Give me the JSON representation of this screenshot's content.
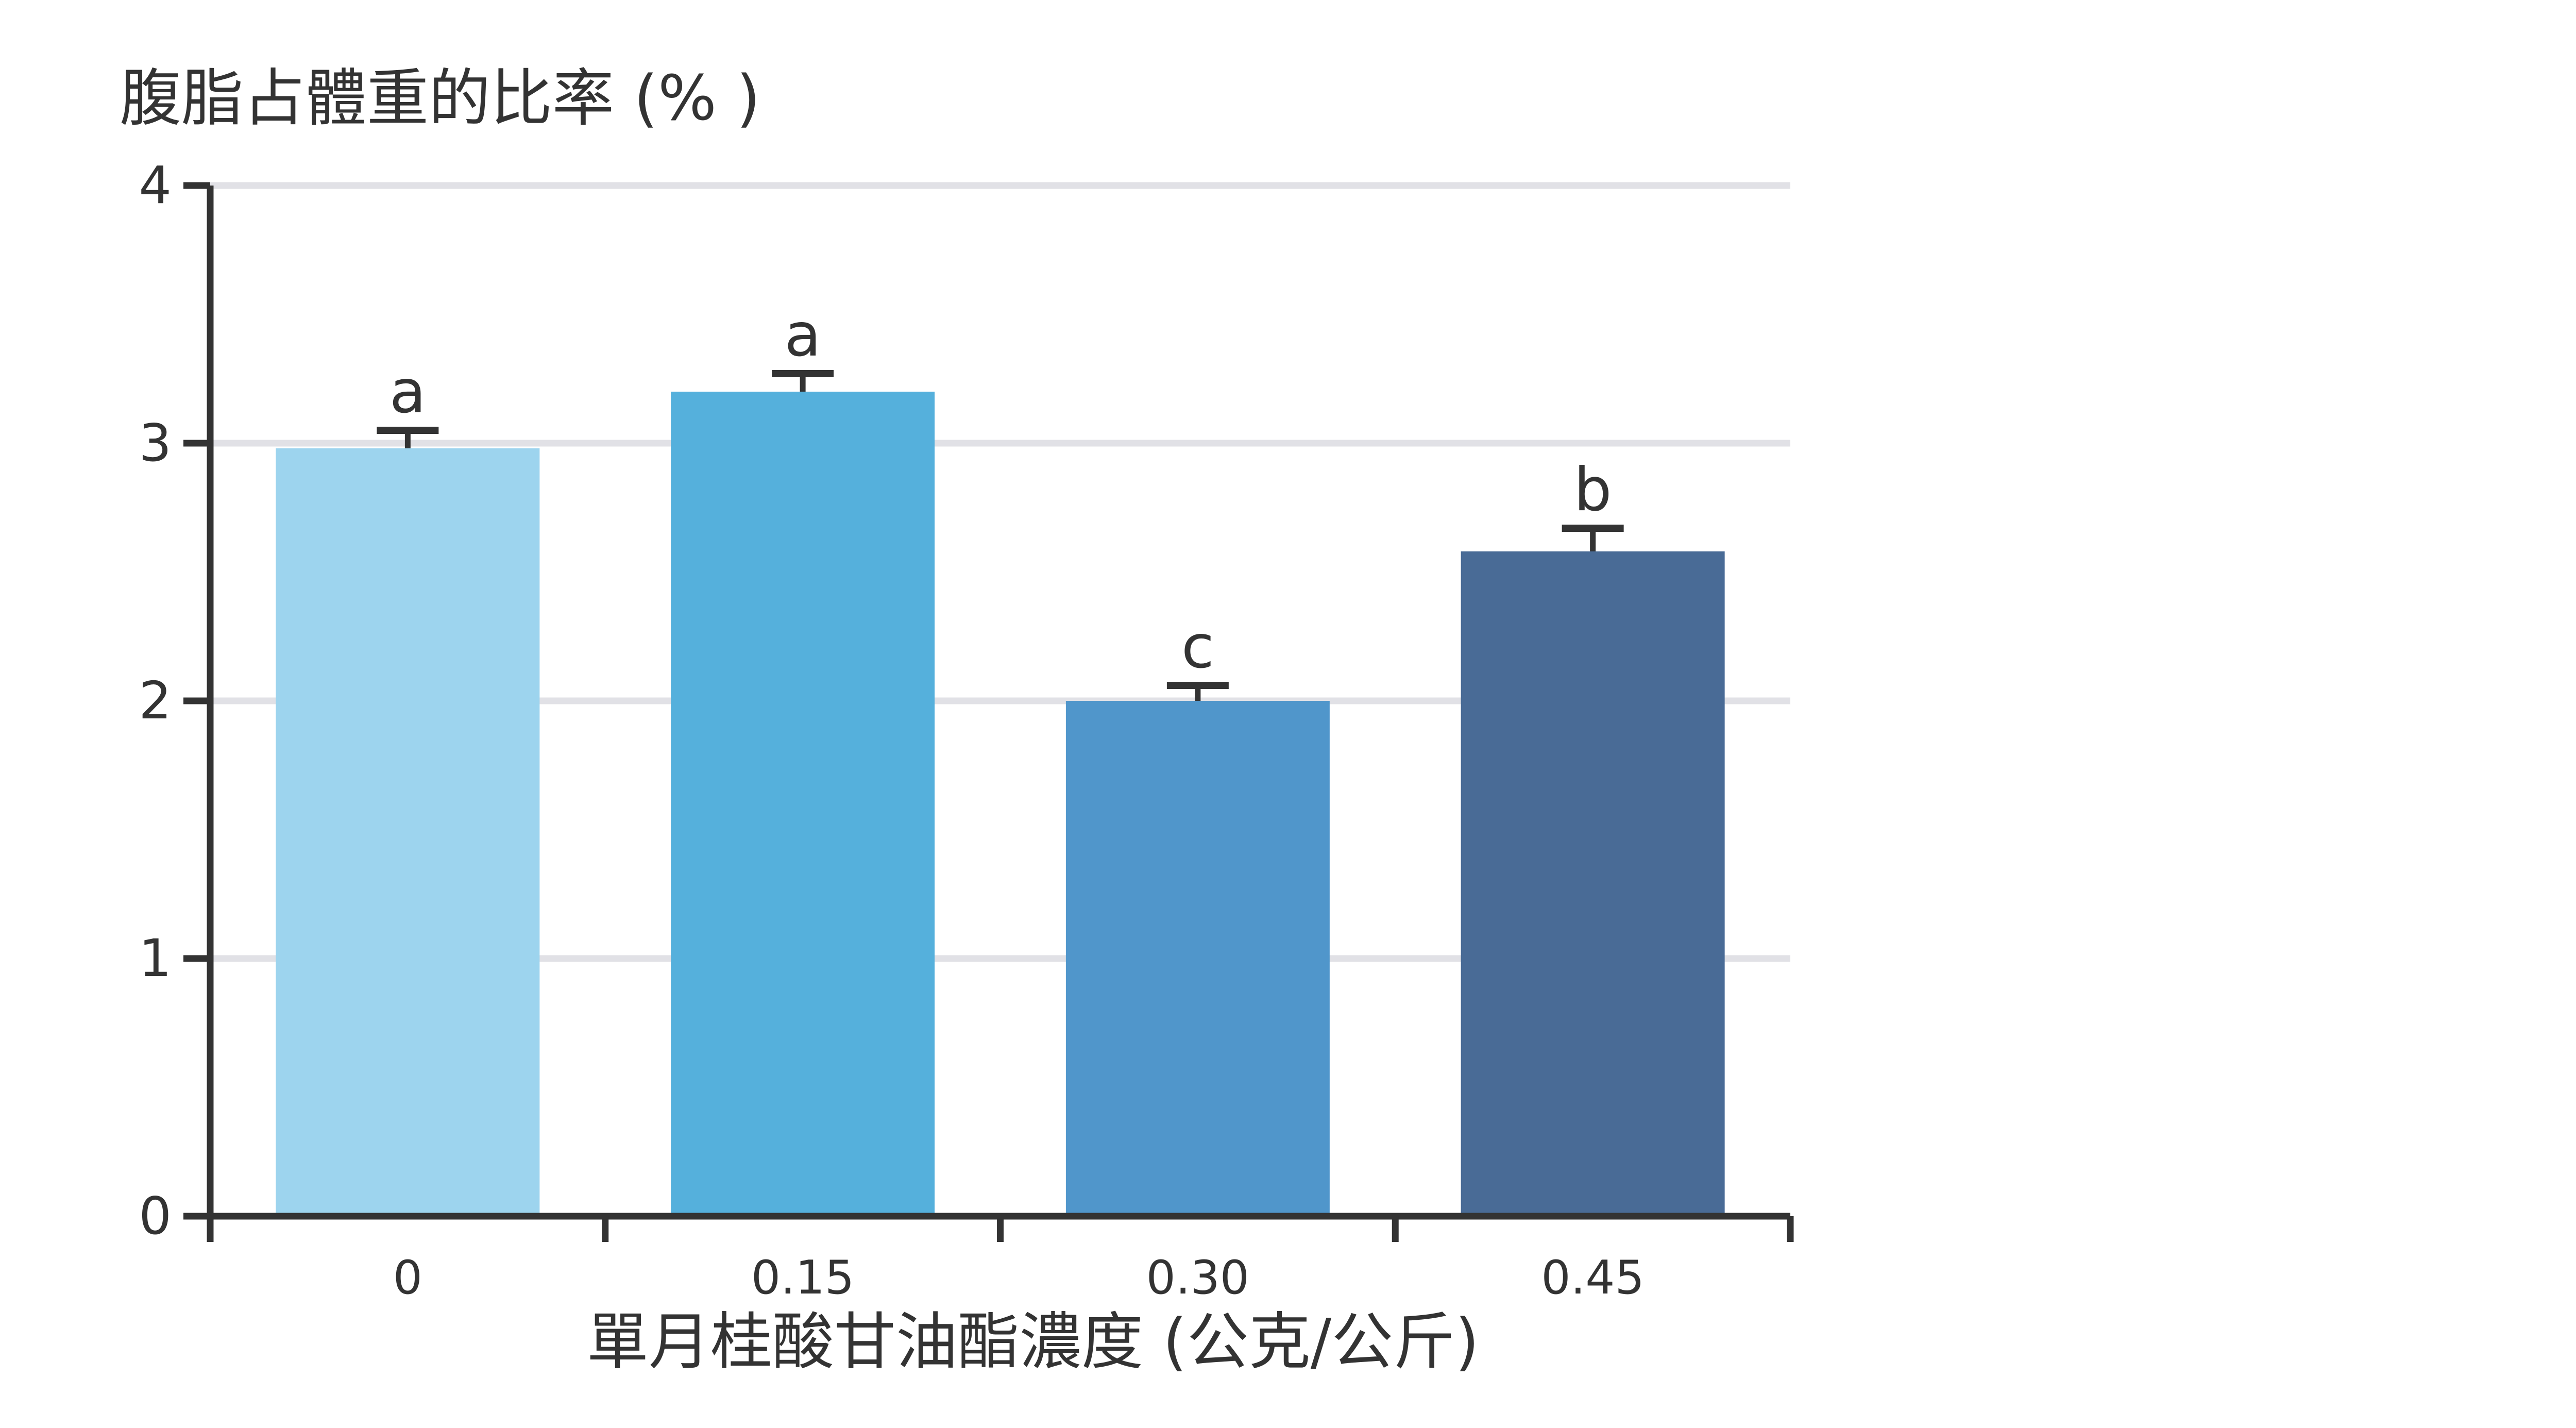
{
  "chart_data": {
    "type": "bar",
    "title": "",
    "ylabel": "腹脂占體重的比率 (% )",
    "xlabel": "單月桂酸甘油酯濃度 (公克/公斤)",
    "categories": [
      "0",
      "0.15",
      "0.30",
      "0.45"
    ],
    "values": [
      2.98,
      3.2,
      2.0,
      2.58
    ],
    "error_upper": [
      0.07,
      0.07,
      0.06,
      0.09
    ],
    "significance_letters": [
      "a",
      "a",
      "c",
      "b"
    ],
    "ylim": [
      0,
      4
    ],
    "yticks": [
      "0",
      "1",
      "2",
      "3",
      "4"
    ],
    "grid": true,
    "legend": "none",
    "colors": [
      "#9dd4ee",
      "#55b0dc",
      "#5096cb",
      "#496b96"
    ],
    "axis_color": "#333333",
    "grid_color": "#e1e1e6"
  }
}
